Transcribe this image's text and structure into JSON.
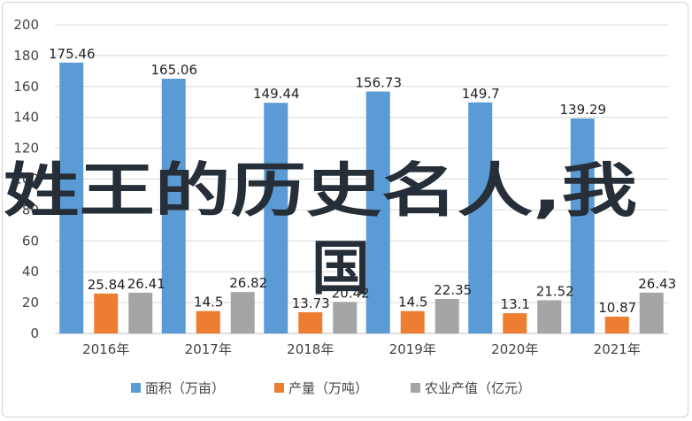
{
  "chart_data": {
    "type": "bar",
    "categories": [
      "2016年",
      "2017年",
      "2018年",
      "2019年",
      "2020年",
      "2021年"
    ],
    "series": [
      {
        "name": "面积（万亩）",
        "color": "#5b9bd5",
        "values": [
          175.46,
          165.06,
          149.44,
          156.73,
          149.7,
          139.29
        ],
        "labels": [
          "175.46",
          "165.06",
          "149.44",
          "156.73",
          "149.7",
          "139.29"
        ]
      },
      {
        "name": "产量（万吨）",
        "color": "#ed7d31",
        "values": [
          25.84,
          14.5,
          13.73,
          14.5,
          13.1,
          10.87
        ],
        "labels": [
          "25.84",
          "14.5",
          "13.73",
          "14.5",
          "13.1",
          "10.87"
        ]
      },
      {
        "name": "农业产值（亿元）",
        "color": "#a5a5a5",
        "values": [
          26.41,
          26.82,
          20.42,
          22.35,
          21.52,
          26.43
        ],
        "labels": [
          "26.41",
          "26.82",
          "20.42",
          "22.35",
          "21.52",
          "26.43"
        ]
      }
    ],
    "ylim": [
      0,
      200
    ],
    "yticks": [
      "0",
      "20",
      "40",
      "60",
      "80",
      "100",
      "120",
      "140",
      "160",
      "180",
      "200"
    ],
    "grid": true,
    "legend": "bottom"
  },
  "overlay_text": {
    "line1": "姓王的历史名人,我",
    "line2": "国"
  }
}
